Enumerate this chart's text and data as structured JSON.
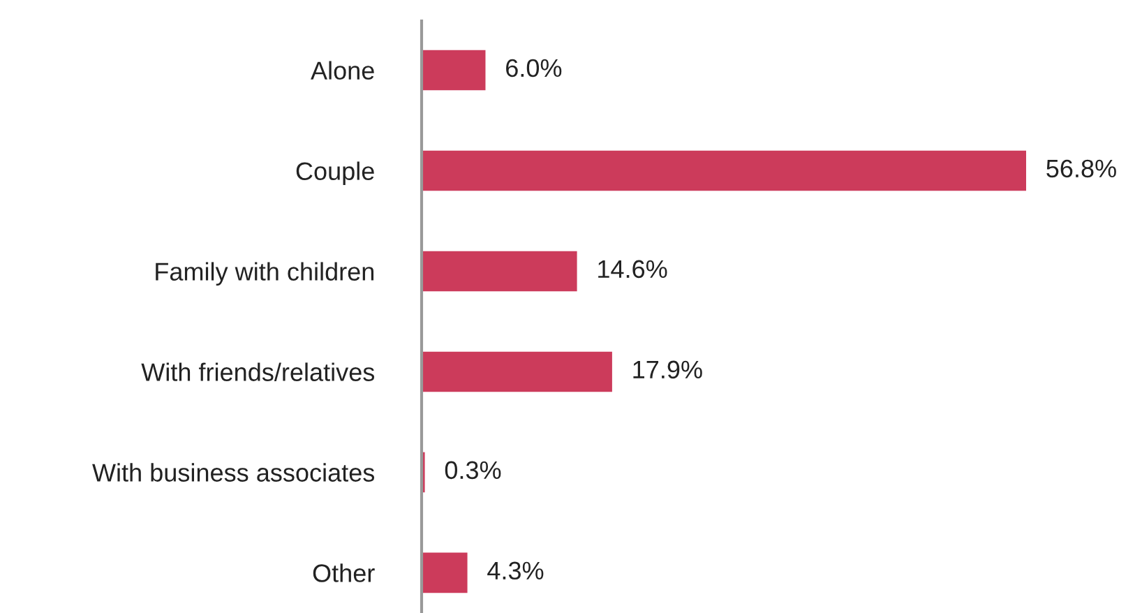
{
  "chart_data": {
    "type": "bar",
    "orientation": "horizontal",
    "categories": [
      "Alone",
      "Couple",
      "Family with children",
      "With friends/relatives",
      "With business associates",
      "Other"
    ],
    "values": [
      6.0,
      56.8,
      14.6,
      17.9,
      0.3,
      4.3
    ],
    "value_labels": [
      "6.0%",
      "56.8%",
      "14.6%",
      "17.9%",
      "0.3%",
      "4.3%"
    ],
    "color": "#cc3b5b",
    "tick_labels": "y"
  }
}
